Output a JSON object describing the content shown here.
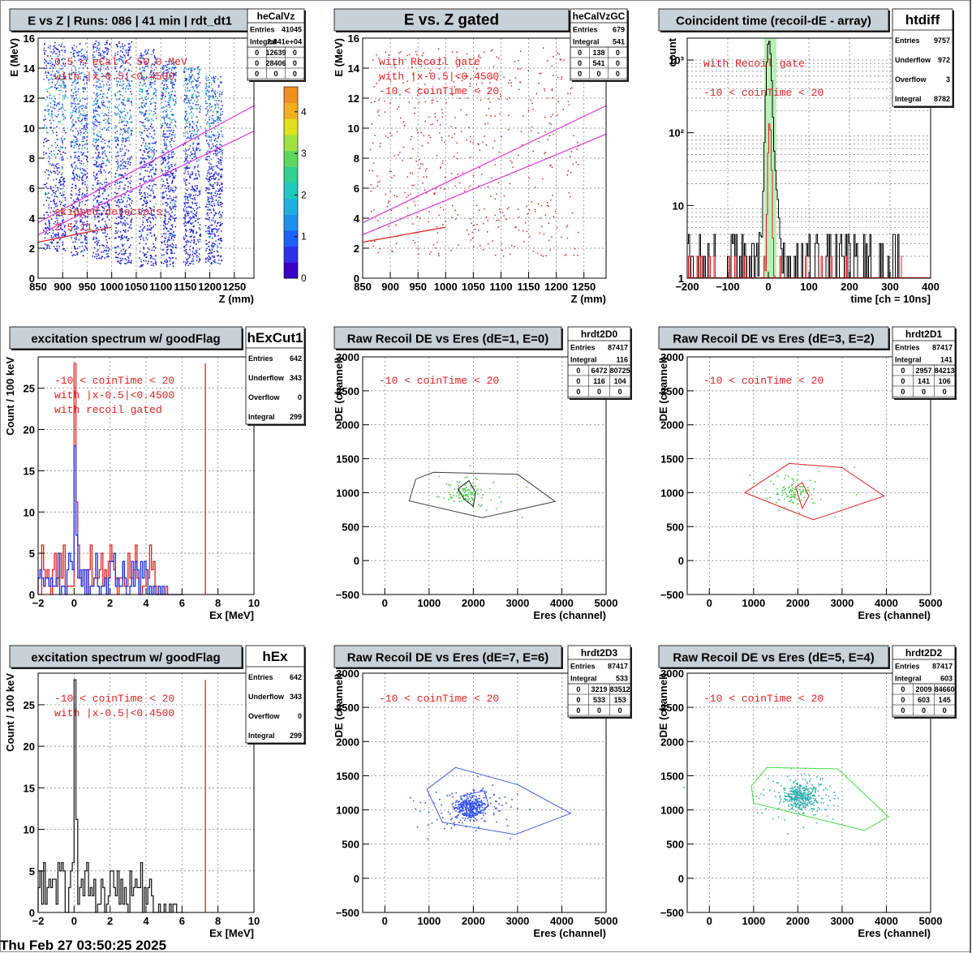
{
  "footer": "Thu Feb 27 03:50:25 2025",
  "panels": [
    {
      "title": "E vs Z | Runs: 086 | 41 min | rdt_dt1",
      "stats": {
        "name": "heCalVz",
        "rows": [
          [
            "Entries",
            "41045"
          ],
          [
            "Integral",
            "2.841e+04"
          ]
        ],
        "grid": [
          [
            "0",
            "12639",
            "0"
          ],
          [
            "0",
            "28406",
            "0"
          ],
          [
            "0",
            "0",
            "0"
          ]
        ]
      },
      "chart_data": {
        "type": "heatmap",
        "xlabel": "Z (mm)",
        "ylabel": "E (MeV)",
        "xlim": [
          850,
          1290
        ],
        "ylim": [
          0,
          16
        ],
        "xticks": [
          "850",
          "900",
          "950",
          "1000",
          "1050",
          "1100",
          "1150",
          "1200",
          "1250"
        ],
        "yticks": [
          "0",
          "2",
          "4",
          "6",
          "8",
          "10",
          "12",
          "14",
          "16"
        ],
        "zticks": [
          "0",
          "1",
          "2",
          "3",
          "4"
        ],
        "zlim": [
          0,
          4.6
        ],
        "detector_columns": [
          [
            860,
            905
          ],
          [
            915,
            950
          ],
          [
            960,
            995
          ],
          [
            1005,
            1040
          ],
          [
            1055,
            1090
          ],
          [
            1100,
            1130
          ],
          [
            1145,
            1180
          ],
          [
            1190,
            1225
          ]
        ],
        "annotations": [
          "0.5 < eCal < 50.0 MeV",
          "with |x-0.5|<0.4500",
          "skipped detectors:",
          "2    5    11"
        ],
        "kin_lines": [
          {
            "color": "#e040e0",
            "points": [
              [
                850,
                3.7
              ],
              [
                1290,
                11.5
              ]
            ]
          },
          {
            "color": "#e040e0",
            "points": [
              [
                850,
                2.9
              ],
              [
                1290,
                9.8
              ]
            ]
          },
          {
            "color": "#e02020",
            "points": [
              [
                850,
                2.4
              ],
              [
                1000,
                3.4
              ]
            ]
          }
        ]
      }
    },
    {
      "title": "E vs. Z gated",
      "stats": {
        "name": "heCalVzGC",
        "rows": [
          [
            "Entries",
            "679"
          ],
          [
            "Integral",
            "541"
          ]
        ],
        "grid": [
          [
            "0",
            "138",
            "0"
          ],
          [
            "0",
            "541",
            "0"
          ],
          [
            "0",
            "0",
            "0"
          ]
        ]
      },
      "chart_data": {
        "type": "scatter",
        "xlabel": "Z (mm)",
        "ylabel": "E (MeV)",
        "xlim": [
          850,
          1290
        ],
        "ylim": [
          0,
          16
        ],
        "xticks": [
          "850",
          "900",
          "950",
          "1000",
          "1050",
          "1100",
          "1150",
          "1200",
          "1250"
        ],
        "yticks": [
          "0",
          "2",
          "4",
          "6",
          "8",
          "10",
          "12",
          "14",
          "16"
        ],
        "annotations": [
          "with Recoil gate",
          "with |x-0.5|<0.4500",
          "-10 < coinTime < 20"
        ],
        "kin_lines": [
          {
            "color": "#e040e0",
            "points": [
              [
                850,
                3.7
              ],
              [
                1290,
                11.5
              ]
            ]
          },
          {
            "color": "#e040e0",
            "points": [
              [
                850,
                2.9
              ],
              [
                1290,
                9.6
              ]
            ]
          },
          {
            "color": "#e02020",
            "points": [
              [
                850,
                2.4
              ],
              [
                1000,
                3.4
              ]
            ]
          }
        ]
      }
    },
    {
      "title": "Coincident time (recoil-dE - array)",
      "stats": {
        "name": "htdiff",
        "rows": [
          [
            "Entries",
            "9757"
          ],
          [
            "Underflow",
            "972"
          ],
          [
            "Overflow",
            "3"
          ],
          [
            "Integral",
            "8782"
          ]
        ]
      },
      "chart_data": {
        "type": "line",
        "xlabel": "time [ch = 10ns]",
        "ylabel": "count",
        "xlim": [
          -200,
          400
        ],
        "ylim": [
          1,
          2000
        ],
        "log_y": true,
        "xticks": [
          "−200",
          "−100",
          "0",
          "100",
          "200",
          "300",
          "400"
        ],
        "yticks": [
          "1",
          "10",
          "10²",
          "10³"
        ],
        "gate": [
          -10,
          20
        ],
        "annotations": [
          "with Recoil gate",
          "-10 < coinTime < 20"
        ]
      }
    },
    {
      "title": "excitation spectrum w/ goodFlag",
      "stats": {
        "name": "hExCut1",
        "rows": [
          [
            "Entries",
            "642"
          ],
          [
            "Underflow",
            "343"
          ],
          [
            "Overflow",
            "0"
          ],
          [
            "Integral",
            "299"
          ]
        ]
      },
      "chart_data": {
        "type": "bar",
        "xlabel": "Ex [MeV]",
        "ylabel": "Count / 100 keV",
        "xlim": [
          -2,
          10
        ],
        "ylim": [
          0,
          28.8
        ],
        "xticks": [
          "−2",
          "0",
          "2",
          "4",
          "6",
          "8",
          "10"
        ],
        "yticks": [
          "0",
          "5",
          "10",
          "15",
          "20",
          "25"
        ],
        "marker_x": 7.3,
        "annotations": [
          "-10 < coinTime < 20",
          "with |x-0.5|<0.4500",
          "with recoil gated"
        ],
        "series": [
          {
            "color": "#e02020",
            "peak": 28
          },
          {
            "color": "#2030e0",
            "peak": 18
          }
        ]
      }
    },
    {
      "title": "Raw Recoil DE vs Eres (dE=1, E=0)",
      "stats": {
        "name": "hrdt2D0",
        "rows": [
          [
            "Entries",
            "87417"
          ],
          [
            "Integral",
            "116"
          ]
        ],
        "grid": [
          [
            "0",
            "6472",
            "80725"
          ],
          [
            "0",
            "116",
            "104"
          ],
          [
            "0",
            "0",
            "0"
          ]
        ]
      },
      "chart_data": {
        "type": "scatter",
        "xlabel": "Eres (channel)",
        "ylabel": "DE (channel)",
        "xlim": [
          -500,
          5000
        ],
        "ylim": [
          -500,
          3000
        ],
        "xticks": [
          "0",
          "1000",
          "2000",
          "3000",
          "4000",
          "5000"
        ],
        "yticks": [
          "−500",
          "0",
          "500",
          "1000",
          "1500",
          "2000",
          "2500",
          "3000"
        ],
        "annotations": [
          "-10 < coinTime < 20"
        ],
        "dot_color": "#40d040",
        "cluster": [
          1800,
          1000
        ],
        "cuts": [
          {
            "color": "#404040",
            "points": [
              [
                700,
                1200
              ],
              [
                1100,
                1300
              ],
              [
                3000,
                1270
              ],
              [
                3850,
                870
              ],
              [
                2200,
                630
              ],
              [
                550,
                880
              ],
              [
                700,
                1200
              ]
            ]
          },
          {
            "color": "#202020",
            "points": [
              [
                1650,
                1050
              ],
              [
                1900,
                1180
              ],
              [
                2050,
                1000
              ],
              [
                2000,
                800
              ],
              [
                1800,
                900
              ],
              [
                1650,
                1050
              ]
            ]
          }
        ]
      }
    },
    {
      "title": "Raw Recoil DE vs Eres (dE=3, E=2)",
      "stats": {
        "name": "hrdt2D1",
        "rows": [
          [
            "Entries",
            "87417"
          ],
          [
            "Integral",
            "141"
          ]
        ],
        "grid": [
          [
            "0",
            "2957",
            "84213"
          ],
          [
            "0",
            "141",
            "106"
          ],
          [
            "0",
            "0",
            "0"
          ]
        ]
      },
      "chart_data": {
        "type": "scatter",
        "xlabel": "Eres (channel)",
        "ylabel": "DE (channel)",
        "xlim": [
          -500,
          5000
        ],
        "ylim": [
          -500,
          3000
        ],
        "xticks": [
          "0",
          "1000",
          "2000",
          "3000",
          "4000",
          "5000"
        ],
        "yticks": [
          "−500",
          "0",
          "500",
          "1000",
          "1500",
          "2000",
          "2500",
          "3000"
        ],
        "annotations": [
          "-10 < coinTime < 20"
        ],
        "dot_color": "#40d040",
        "cluster": [
          1900,
          1000
        ],
        "cuts": [
          {
            "color": "#e02020",
            "points": [
              [
                800,
                1000
              ],
              [
                1800,
                1430
              ],
              [
                3000,
                1370
              ],
              [
                3950,
                950
              ],
              [
                2350,
                600
              ],
              [
                800,
                1000
              ]
            ]
          },
          {
            "color": "#e02020",
            "points": [
              [
                1950,
                1080
              ],
              [
                2100,
                1150
              ],
              [
                2250,
                950
              ],
              [
                2100,
                770
              ],
              [
                1950,
                1080
              ]
            ]
          }
        ]
      }
    },
    {
      "title": "excitation spectrum w/ goodFlag",
      "stats": {
        "name": "hEx",
        "rows": [
          [
            "Entries",
            "642"
          ],
          [
            "Underflow",
            "343"
          ],
          [
            "Overflow",
            "0"
          ],
          [
            "Integral",
            "299"
          ]
        ]
      },
      "chart_data": {
        "type": "bar",
        "xlabel": "Ex [MeV]",
        "ylabel": "Count / 100 keV",
        "xlim": [
          -2,
          10
        ],
        "ylim": [
          0,
          28.8
        ],
        "xticks": [
          "−2",
          "0",
          "2",
          "4",
          "6",
          "8",
          "10"
        ],
        "yticks": [
          "0",
          "5",
          "10",
          "15",
          "20",
          "25"
        ],
        "marker_x": 7.3,
        "annotations": [
          "-10 < coinTime < 20",
          "with |x-0.5|<0.4500"
        ],
        "series": [
          {
            "color": "#202020",
            "peak": 28
          }
        ]
      }
    },
    {
      "title": "Raw Recoil DE vs Eres (dE=7, E=6)",
      "stats": {
        "name": "hrdt2D3",
        "rows": [
          [
            "Entries",
            "87417"
          ],
          [
            "Integral",
            "533"
          ]
        ],
        "grid": [
          [
            "0",
            "3219",
            "83512"
          ],
          [
            "0",
            "533",
            "153"
          ],
          [
            "0",
            "0",
            "0"
          ]
        ]
      },
      "chart_data": {
        "type": "scatter",
        "xlabel": "Eres (channel)",
        "ylabel": "DE (channel)",
        "xlim": [
          -500,
          5000
        ],
        "ylim": [
          -500,
          3000
        ],
        "xticks": [
          "0",
          "1000",
          "2000",
          "3000",
          "4000",
          "5000"
        ],
        "yticks": [
          "−500",
          "0",
          "500",
          "1000",
          "1500",
          "2000",
          "2500",
          "3000"
        ],
        "annotations": [
          "-10 < coinTime < 20"
        ],
        "dot_color": "#3050f0",
        "cluster": [
          1900,
          1050
        ],
        "cuts": [
          {
            "color": "#4060e0",
            "points": [
              [
                950,
                1300
              ],
              [
                1600,
                1620
              ],
              [
                3000,
                1370
              ],
              [
                4200,
                950
              ],
              [
                2950,
                640
              ],
              [
                1300,
                820
              ],
              [
                950,
                1300
              ]
            ]
          },
          {
            "color": "#4060e0",
            "points": [
              [
                1700,
                1200
              ],
              [
                2250,
                1280
              ],
              [
                2350,
                1060
              ],
              [
                2000,
                900
              ],
              [
                1700,
                1200
              ]
            ]
          }
        ]
      }
    },
    {
      "title": "Raw Recoil DE vs Eres (dE=5, E=4)",
      "stats": {
        "name": "hrdt2D2",
        "rows": [
          [
            "Entries",
            "87417"
          ],
          [
            "Integral",
            "603"
          ]
        ],
        "grid": [
          [
            "0",
            "2009",
            "84660"
          ],
          [
            "0",
            "603",
            "145"
          ],
          [
            "0",
            "0",
            "0"
          ]
        ]
      },
      "chart_data": {
        "type": "scatter",
        "xlabel": "Eres (channel)",
        "ylabel": "DE (channel)",
        "xlim": [
          -500,
          5000
        ],
        "ylim": [
          -500,
          3000
        ],
        "xticks": [
          "0",
          "1000",
          "2000",
          "3000",
          "4000",
          "5000"
        ],
        "yticks": [
          "−500",
          "0",
          "500",
          "1000",
          "1500",
          "2000",
          "2500",
          "3000"
        ],
        "annotations": [
          "-10 < coinTime < 20"
        ],
        "dot_color": "#30b0b0",
        "cluster": [
          2050,
          1200
        ],
        "cuts": [
          {
            "color": "#40e040",
            "points": [
              [
                950,
                1350
              ],
              [
                1300,
                1620
              ],
              [
                2900,
                1600
              ],
              [
                4050,
                900
              ],
              [
                3500,
                700
              ],
              [
                1000,
                1100
              ],
              [
                950,
                1350
              ]
            ]
          }
        ]
      }
    }
  ]
}
